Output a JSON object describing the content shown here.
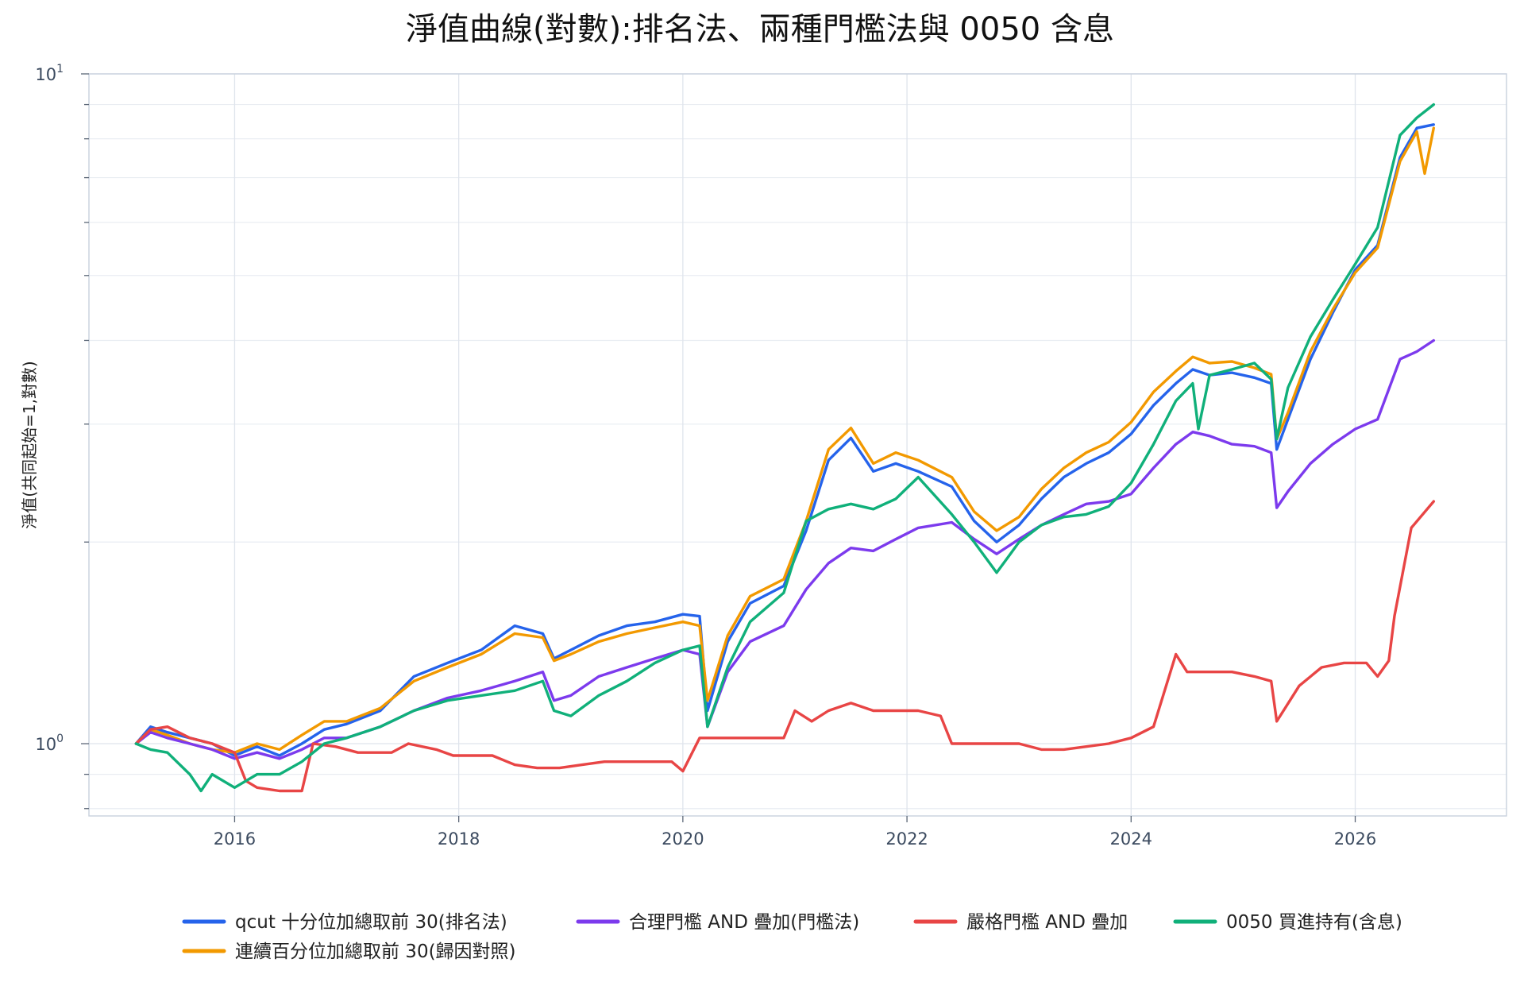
{
  "chart_data": {
    "type": "line",
    "title": "淨值曲線(對數):排名法、兩種門檻法與 0050 含息",
    "ylabel": "淨值(共同起始=1,對數)",
    "xlabel": "",
    "y_scale": "log",
    "ylim": [
      0.78,
      10.0
    ],
    "xlim": [
      2014.7,
      2027.35
    ],
    "x_ticks": [
      2016,
      2018,
      2020,
      2022,
      2024,
      2026
    ],
    "x_tick_labels": [
      "2016",
      "2018",
      "2020",
      "2022",
      "2024",
      "2026"
    ],
    "y_ticks": [
      {
        "value": 1,
        "base": "10",
        "exp": "0"
      },
      {
        "value": 10,
        "base": "10",
        "exp": "1"
      }
    ],
    "y_minor_ticks": [
      0.8,
      0.9,
      2,
      3,
      4,
      5,
      6,
      7,
      8,
      9
    ],
    "grid": true,
    "legend_position": "bottom",
    "series": [
      {
        "name": "qcut 十分位加總取前 30(排名法)",
        "color": "#2563eb",
        "x": [
          2015.12,
          2015.25,
          2015.4,
          2015.6,
          2015.8,
          2016.0,
          2016.2,
          2016.4,
          2016.6,
          2016.8,
          2017.0,
          2017.3,
          2017.6,
          2017.9,
          2018.2,
          2018.5,
          2018.75,
          2018.85,
          2019.0,
          2019.25,
          2019.5,
          2019.75,
          2020.0,
          2020.15,
          2020.22,
          2020.4,
          2020.6,
          2020.9,
          2021.1,
          2021.3,
          2021.5,
          2021.7,
          2021.9,
          2022.1,
          2022.4,
          2022.6,
          2022.8,
          2023.0,
          2023.2,
          2023.4,
          2023.6,
          2023.8,
          2024.0,
          2024.2,
          2024.4,
          2024.55,
          2024.7,
          2024.9,
          2025.1,
          2025.25,
          2025.3,
          2025.4,
          2025.6,
          2025.8,
          2026.0,
          2026.2,
          2026.4,
          2026.55,
          2026.7
        ],
        "y": [
          1.0,
          1.06,
          1.04,
          1.02,
          1.0,
          0.96,
          0.99,
          0.96,
          1.0,
          1.05,
          1.07,
          1.12,
          1.26,
          1.32,
          1.38,
          1.5,
          1.46,
          1.34,
          1.38,
          1.45,
          1.5,
          1.52,
          1.56,
          1.55,
          1.12,
          1.42,
          1.62,
          1.72,
          2.08,
          2.65,
          2.86,
          2.55,
          2.62,
          2.55,
          2.42,
          2.15,
          2.0,
          2.12,
          2.32,
          2.5,
          2.62,
          2.72,
          2.9,
          3.2,
          3.45,
          3.62,
          3.55,
          3.58,
          3.52,
          3.45,
          2.75,
          3.05,
          3.75,
          4.4,
          5.1,
          5.55,
          7.5,
          8.3,
          8.4
        ]
      },
      {
        "name": "連續百分位加總取前 30(歸因對照)",
        "color": "#f29900",
        "x": [
          2015.12,
          2015.25,
          2015.4,
          2015.6,
          2015.8,
          2016.0,
          2016.2,
          2016.4,
          2016.6,
          2016.8,
          2017.0,
          2017.3,
          2017.6,
          2017.9,
          2018.2,
          2018.5,
          2018.75,
          2018.85,
          2019.0,
          2019.25,
          2019.5,
          2019.75,
          2020.0,
          2020.15,
          2020.22,
          2020.4,
          2020.6,
          2020.9,
          2021.1,
          2021.3,
          2021.5,
          2021.7,
          2021.9,
          2022.1,
          2022.4,
          2022.6,
          2022.8,
          2023.0,
          2023.2,
          2023.4,
          2023.6,
          2023.8,
          2024.0,
          2024.2,
          2024.4,
          2024.55,
          2024.7,
          2024.9,
          2025.1,
          2025.25,
          2025.3,
          2025.4,
          2025.6,
          2025.8,
          2026.0,
          2026.2,
          2026.4,
          2026.55,
          2026.62,
          2026.7
        ],
        "y": [
          1.0,
          1.05,
          1.03,
          1.0,
          0.98,
          0.97,
          1.0,
          0.98,
          1.03,
          1.08,
          1.08,
          1.13,
          1.24,
          1.3,
          1.36,
          1.46,
          1.44,
          1.33,
          1.36,
          1.42,
          1.46,
          1.49,
          1.52,
          1.5,
          1.16,
          1.45,
          1.66,
          1.76,
          2.15,
          2.75,
          2.96,
          2.62,
          2.72,
          2.65,
          2.5,
          2.22,
          2.08,
          2.18,
          2.4,
          2.58,
          2.72,
          2.82,
          3.02,
          3.35,
          3.6,
          3.78,
          3.7,
          3.72,
          3.64,
          3.56,
          2.85,
          3.12,
          3.85,
          4.45,
          5.05,
          5.5,
          7.4,
          8.2,
          7.1,
          8.3
        ]
      },
      {
        "name": "合理門檻 AND 疊加(門檻法)",
        "color": "#7c3aed",
        "x": [
          2015.12,
          2015.25,
          2015.4,
          2015.6,
          2015.8,
          2016.0,
          2016.2,
          2016.4,
          2016.6,
          2016.8,
          2017.0,
          2017.3,
          2017.6,
          2017.9,
          2018.2,
          2018.5,
          2018.75,
          2018.85,
          2019.0,
          2019.25,
          2019.5,
          2019.75,
          2020.0,
          2020.15,
          2020.22,
          2020.4,
          2020.6,
          2020.9,
          2021.1,
          2021.3,
          2021.5,
          2021.7,
          2021.9,
          2022.1,
          2022.4,
          2022.6,
          2022.8,
          2023.0,
          2023.2,
          2023.4,
          2023.6,
          2023.8,
          2024.0,
          2024.2,
          2024.4,
          2024.55,
          2024.7,
          2024.9,
          2025.1,
          2025.25,
          2025.3,
          2025.4,
          2025.6,
          2025.8,
          2026.0,
          2026.2,
          2026.4,
          2026.55,
          2026.7
        ],
        "y": [
          1.0,
          1.04,
          1.02,
          1.0,
          0.98,
          0.95,
          0.97,
          0.95,
          0.98,
          1.02,
          1.02,
          1.06,
          1.12,
          1.17,
          1.2,
          1.24,
          1.28,
          1.16,
          1.18,
          1.26,
          1.3,
          1.34,
          1.38,
          1.36,
          1.06,
          1.28,
          1.42,
          1.5,
          1.7,
          1.86,
          1.96,
          1.94,
          2.02,
          2.1,
          2.14,
          2.02,
          1.92,
          2.02,
          2.12,
          2.2,
          2.28,
          2.3,
          2.36,
          2.58,
          2.8,
          2.92,
          2.88,
          2.8,
          2.78,
          2.72,
          2.25,
          2.38,
          2.62,
          2.8,
          2.95,
          3.05,
          3.75,
          3.85,
          4.0
        ]
      },
      {
        "name": "嚴格門檻 AND 疊加",
        "color": "#e84545",
        "x": [
          2015.12,
          2015.25,
          2015.4,
          2015.6,
          2015.8,
          2016.0,
          2016.1,
          2016.2,
          2016.4,
          2016.6,
          2016.7,
          2016.9,
          2017.1,
          2017.4,
          2017.55,
          2017.8,
          2017.95,
          2018.3,
          2018.5,
          2018.7,
          2018.9,
          2019.1,
          2019.3,
          2019.5,
          2019.7,
          2019.9,
          2020.0,
          2020.15,
          2020.3,
          2020.5,
          2020.7,
          2020.9,
          2021.0,
          2021.15,
          2021.3,
          2021.5,
          2021.7,
          2021.9,
          2022.1,
          2022.3,
          2022.4,
          2022.6,
          2022.8,
          2023.0,
          2023.2,
          2023.4,
          2023.6,
          2023.8,
          2024.0,
          2024.2,
          2024.4,
          2024.5,
          2024.7,
          2024.9,
          2025.1,
          2025.25,
          2025.3,
          2025.5,
          2025.7,
          2025.9,
          2026.0,
          2026.1,
          2026.2,
          2026.3,
          2026.35,
          2026.5,
          2026.7
        ],
        "y": [
          1.0,
          1.05,
          1.06,
          1.02,
          1.0,
          0.97,
          0.88,
          0.86,
          0.85,
          0.85,
          1.0,
          0.99,
          0.97,
          0.97,
          1.0,
          0.98,
          0.96,
          0.96,
          0.93,
          0.92,
          0.92,
          0.93,
          0.94,
          0.94,
          0.94,
          0.94,
          0.91,
          1.02,
          1.02,
          1.02,
          1.02,
          1.02,
          1.12,
          1.08,
          1.12,
          1.15,
          1.12,
          1.12,
          1.12,
          1.1,
          1.0,
          1.0,
          1.0,
          1.0,
          0.98,
          0.98,
          0.99,
          1.0,
          1.02,
          1.06,
          1.36,
          1.28,
          1.28,
          1.28,
          1.26,
          1.24,
          1.08,
          1.22,
          1.3,
          1.32,
          1.32,
          1.32,
          1.26,
          1.33,
          1.55,
          2.1,
          2.3
        ]
      },
      {
        "name": "0050 買進持有(含息)",
        "color": "#10b07a",
        "x": [
          2015.12,
          2015.25,
          2015.4,
          2015.6,
          2015.7,
          2015.8,
          2016.0,
          2016.2,
          2016.4,
          2016.6,
          2016.8,
          2017.0,
          2017.3,
          2017.6,
          2017.9,
          2018.2,
          2018.5,
          2018.75,
          2018.85,
          2019.0,
          2019.25,
          2019.5,
          2019.75,
          2020.0,
          2020.15,
          2020.22,
          2020.4,
          2020.6,
          2020.9,
          2021.1,
          2021.3,
          2021.5,
          2021.7,
          2021.9,
          2022.1,
          2022.4,
          2022.6,
          2022.8,
          2023.0,
          2023.2,
          2023.4,
          2023.6,
          2023.8,
          2024.0,
          2024.2,
          2024.4,
          2024.55,
          2024.6,
          2024.7,
          2024.9,
          2025.1,
          2025.25,
          2025.3,
          2025.4,
          2025.6,
          2025.8,
          2026.0,
          2026.2,
          2026.4,
          2026.55,
          2026.7
        ],
        "y": [
          1.0,
          0.98,
          0.97,
          0.9,
          0.85,
          0.9,
          0.86,
          0.9,
          0.9,
          0.94,
          1.0,
          1.02,
          1.06,
          1.12,
          1.16,
          1.18,
          1.2,
          1.24,
          1.12,
          1.1,
          1.18,
          1.24,
          1.32,
          1.38,
          1.4,
          1.06,
          1.3,
          1.52,
          1.68,
          2.15,
          2.24,
          2.28,
          2.24,
          2.32,
          2.5,
          2.2,
          2.0,
          1.8,
          2.0,
          2.12,
          2.18,
          2.2,
          2.26,
          2.45,
          2.8,
          3.25,
          3.45,
          2.95,
          3.55,
          3.62,
          3.7,
          3.5,
          2.85,
          3.4,
          4.05,
          4.6,
          5.2,
          5.9,
          8.1,
          8.6,
          9.0
        ]
      }
    ]
  }
}
